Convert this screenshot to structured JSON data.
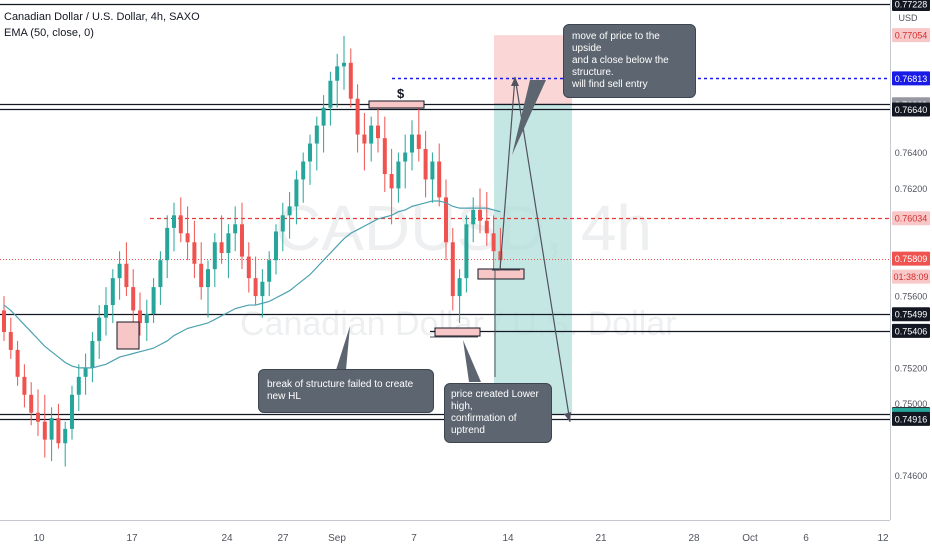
{
  "legend": {
    "title": "Canadian Dollar / U.S. Dollar, 4h, SAXO",
    "indicator": "EMA (50, close, 0)"
  },
  "watermark": {
    "symbol": "CADUSD, 4h",
    "name": "Canadian Dollar / U.S. Dollar"
  },
  "axis": {
    "currency": "USD",
    "countdown": "01:38:09"
  },
  "annotations": {
    "dollar_sign": "$",
    "callout_top": [
      "move of price to the upside",
      "and a close below the structure.",
      "will find sell entry"
    ],
    "callout_left": [
      "break of structure failed to create new HL"
    ],
    "callout_mid": [
      "price created Lower high,",
      "confirmation of uptrend"
    ]
  },
  "colors": {
    "up": "#26a69a",
    "down": "#ef5350",
    "ema": "#4ca1af",
    "red_level": "#e53935",
    "blue_level": "#1a1ae6",
    "profit_zone": "#b2dfdb",
    "loss_zone": "#f8c8c8"
  },
  "chart_data": {
    "type": "candlestick",
    "y_axis": {
      "min": 0.7438,
      "max": 0.7725,
      "tick_labels": [
        "0.77228",
        "0.77054",
        "0.76813",
        "0.76669",
        "0.76640",
        "0.76400",
        "0.76200",
        "0.76034",
        "0.75809",
        "0.75600",
        "0.75499",
        "0.75406",
        "0.75200",
        "0.75000",
        "0.74942",
        "0.74937",
        "0.74916",
        "0.74600"
      ],
      "ticks": [
        0.764,
        0.762,
        0.756,
        0.752,
        0.75,
        0.746
      ]
    },
    "x_axis": {
      "tick_labels": [
        "10",
        "17",
        "24",
        "27",
        "Sep",
        "7",
        "14",
        "21",
        "28",
        "Oct",
        "6",
        "12"
      ]
    },
    "price_labels": [
      {
        "value": 0.77228,
        "label": "0.77228",
        "style": "dark"
      },
      {
        "value": 0.77054,
        "label": "0.77054",
        "style": "red-light"
      },
      {
        "value": 0.76813,
        "label": "0.76813",
        "style": "blue"
      },
      {
        "value": 0.76669,
        "label": "0.76669",
        "style": "gray"
      },
      {
        "value": 0.7664,
        "label": "0.76640",
        "style": "dark"
      },
      {
        "value": 0.76034,
        "label": "0.76034",
        "style": "red-light"
      },
      {
        "value": 0.75809,
        "label": "0.75809",
        "style": "red"
      },
      {
        "value": 0.75499,
        "label": "0.75499",
        "style": "dark"
      },
      {
        "value": 0.75406,
        "label": "0.75406",
        "style": "dark"
      },
      {
        "value": 0.74942,
        "label": "0.74942",
        "style": "dark"
      },
      {
        "value": 0.74937,
        "label": "0.74937",
        "style": "green"
      },
      {
        "value": 0.74916,
        "label": "0.74916",
        "style": "dark"
      }
    ],
    "horizontal_levels": [
      {
        "value": 0.77228,
        "style": "solid"
      },
      {
        "value": 0.76669,
        "style": "solid"
      },
      {
        "value": 0.7664,
        "style": "solid"
      },
      {
        "value": 0.75499,
        "style": "solid"
      },
      {
        "value": 0.75406,
        "style": "solid"
      },
      {
        "value": 0.74942,
        "style": "solid"
      },
      {
        "value": 0.74916,
        "style": "solid"
      },
      {
        "value": 0.76034,
        "style": "red-dashed"
      },
      {
        "value": 0.76813,
        "style": "blue-dashed"
      },
      {
        "value": 0.75809,
        "style": "red-dotted"
      }
    ],
    "position_box": {
      "entry": 0.76669,
      "stop": 0.77054,
      "target": 0.74937
    },
    "series": [
      {
        "name": "CADUSD",
        "ohlc": [
          [
            0.7552,
            0.756,
            0.7535,
            0.754
          ],
          [
            0.754,
            0.7548,
            0.7525,
            0.753
          ],
          [
            0.753,
            0.7535,
            0.751,
            0.7515
          ],
          [
            0.7515,
            0.7522,
            0.7498,
            0.7505
          ],
          [
            0.7505,
            0.7512,
            0.7488,
            0.7495
          ],
          [
            0.7495,
            0.7508,
            0.7482,
            0.749
          ],
          [
            0.749,
            0.7505,
            0.747,
            0.748
          ],
          [
            0.748,
            0.7498,
            0.7468,
            0.7492
          ],
          [
            0.7492,
            0.75,
            0.7475,
            0.7478
          ],
          [
            0.7478,
            0.749,
            0.7465,
            0.7486
          ],
          [
            0.7486,
            0.751,
            0.748,
            0.7505
          ],
          [
            0.7505,
            0.7522,
            0.7496,
            0.7515
          ],
          [
            0.7515,
            0.7528,
            0.7505,
            0.752
          ],
          [
            0.752,
            0.754,
            0.7512,
            0.7535
          ],
          [
            0.7535,
            0.7555,
            0.7525,
            0.7548
          ],
          [
            0.7548,
            0.7565,
            0.7538,
            0.7555
          ],
          [
            0.7555,
            0.7575,
            0.7545,
            0.757
          ],
          [
            0.757,
            0.7585,
            0.7558,
            0.7578
          ],
          [
            0.7578,
            0.759,
            0.756,
            0.7565
          ],
          [
            0.7565,
            0.7575,
            0.7545,
            0.7552
          ],
          [
            0.7552,
            0.7562,
            0.7538,
            0.7545
          ],
          [
            0.7545,
            0.7558,
            0.7535,
            0.755
          ],
          [
            0.755,
            0.757,
            0.7545,
            0.7565
          ],
          [
            0.7565,
            0.7585,
            0.7555,
            0.758
          ],
          [
            0.758,
            0.7605,
            0.757,
            0.7598
          ],
          [
            0.7598,
            0.7612,
            0.7585,
            0.7605
          ],
          [
            0.7605,
            0.7615,
            0.759,
            0.7595
          ],
          [
            0.7595,
            0.761,
            0.758,
            0.759
          ],
          [
            0.759,
            0.7602,
            0.757,
            0.7578
          ],
          [
            0.7578,
            0.759,
            0.7558,
            0.7565
          ],
          [
            0.7565,
            0.758,
            0.7548,
            0.7575
          ],
          [
            0.7575,
            0.7595,
            0.7565,
            0.759
          ],
          [
            0.759,
            0.7605,
            0.7578,
            0.7584
          ],
          [
            0.7584,
            0.76,
            0.757,
            0.7595
          ],
          [
            0.7595,
            0.761,
            0.7585,
            0.76
          ],
          [
            0.76,
            0.7612,
            0.7575,
            0.7582
          ],
          [
            0.7582,
            0.759,
            0.7562,
            0.757
          ],
          [
            0.757,
            0.7582,
            0.7555,
            0.756
          ],
          [
            0.756,
            0.7575,
            0.7548,
            0.7568
          ],
          [
            0.7568,
            0.7585,
            0.756,
            0.758
          ],
          [
            0.758,
            0.76,
            0.7572,
            0.7596
          ],
          [
            0.7596,
            0.7612,
            0.7585,
            0.7605
          ],
          [
            0.7605,
            0.7618,
            0.7592,
            0.761
          ],
          [
            0.761,
            0.763,
            0.76,
            0.7625
          ],
          [
            0.7625,
            0.764,
            0.7612,
            0.7635
          ],
          [
            0.7635,
            0.765,
            0.7622,
            0.7645
          ],
          [
            0.7645,
            0.766,
            0.763,
            0.7655
          ],
          [
            0.7655,
            0.7672,
            0.764,
            0.7665
          ],
          [
            0.7665,
            0.7685,
            0.7655,
            0.768
          ],
          [
            0.768,
            0.7695,
            0.7665,
            0.7688
          ],
          [
            0.7688,
            0.7705,
            0.7675,
            0.769
          ],
          [
            0.769,
            0.7698,
            0.7665,
            0.767
          ],
          [
            0.767,
            0.7678,
            0.764,
            0.765
          ],
          [
            0.765,
            0.7662,
            0.763,
            0.7645
          ],
          [
            0.7645,
            0.766,
            0.7635,
            0.7655
          ],
          [
            0.7655,
            0.7668,
            0.764,
            0.7648
          ],
          [
            0.7648,
            0.766,
            0.7618,
            0.7628
          ],
          [
            0.7628,
            0.7642,
            0.76,
            0.762
          ],
          [
            0.762,
            0.764,
            0.7612,
            0.7635
          ],
          [
            0.7635,
            0.765,
            0.762,
            0.764
          ],
          [
            0.764,
            0.7658,
            0.763,
            0.765
          ],
          [
            0.765,
            0.7665,
            0.7635,
            0.7642
          ],
          [
            0.7642,
            0.7652,
            0.7615,
            0.7625
          ],
          [
            0.7625,
            0.764,
            0.7612,
            0.7635
          ],
          [
            0.7635,
            0.7645,
            0.761,
            0.7615
          ],
          [
            0.7615,
            0.7625,
            0.758,
            0.759
          ],
          [
            0.759,
            0.7598,
            0.7552,
            0.756
          ],
          [
            0.756,
            0.7575,
            0.7545,
            0.757
          ],
          [
            0.757,
            0.7605,
            0.7562,
            0.76
          ],
          [
            0.76,
            0.7615,
            0.759,
            0.7608
          ],
          [
            0.7608,
            0.762,
            0.7595,
            0.7602
          ],
          [
            0.7602,
            0.7618,
            0.7588,
            0.7595
          ],
          [
            0.7595,
            0.7605,
            0.7575,
            0.7585
          ],
          [
            0.7585,
            0.7598,
            0.7572,
            0.758
          ]
        ]
      }
    ],
    "ema": [
      0.7555,
      0.7552,
      0.7548,
      0.7544,
      0.754,
      0.7536,
      0.7532,
      0.7529,
      0.7526,
      0.7523,
      0.7521,
      0.752,
      0.752,
      0.752,
      0.7521,
      0.7522,
      0.7524,
      0.7526,
      0.7527,
      0.7528,
      0.7529,
      0.753,
      0.7531,
      0.7533,
      0.7535,
      0.7538,
      0.754,
      0.7542,
      0.7543,
      0.7544,
      0.7545,
      0.7547,
      0.7549,
      0.7551,
      0.7553,
      0.7554,
      0.7555,
      0.7555,
      0.7556,
      0.7557,
      0.7559,
      0.7561,
      0.7563,
      0.7566,
      0.7569,
      0.7572,
      0.7576,
      0.758,
      0.7584,
      0.7588,
      0.7592,
      0.7595,
      0.7597,
      0.7599,
      0.7601,
      0.7603,
      0.7604,
      0.7605,
      0.7607,
      0.7608,
      0.761,
      0.7611,
      0.7612,
      0.7613,
      0.7613,
      0.7612,
      0.761,
      0.7609,
      0.7609,
      0.7609,
      0.7609,
      0.7609,
      0.7608,
      0.7607
    ]
  }
}
